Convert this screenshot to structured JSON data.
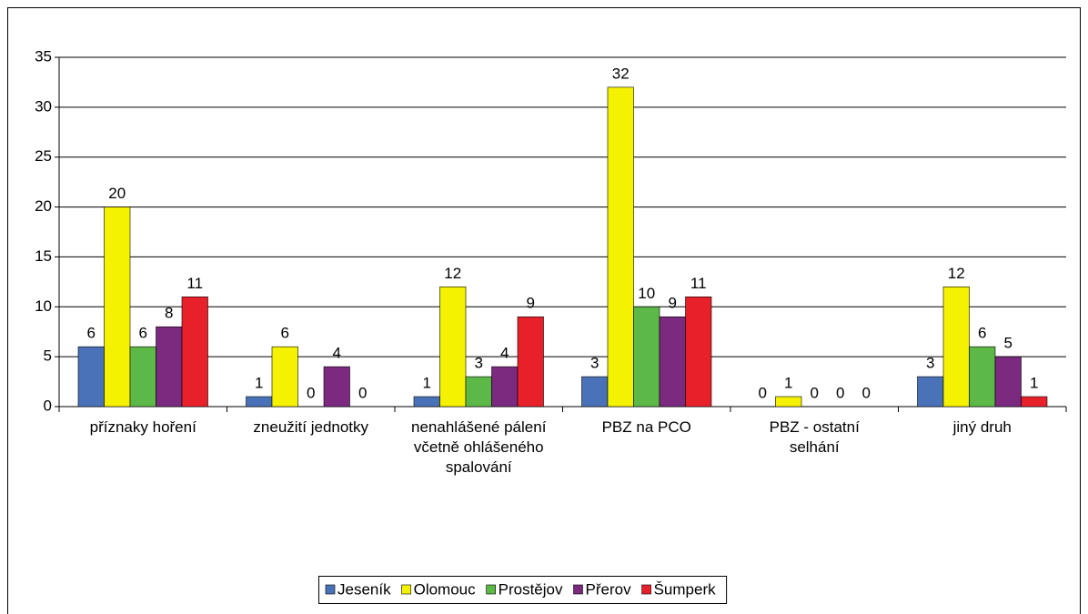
{
  "chart_data": {
    "type": "bar",
    "categories": [
      "příznaky hoření",
      "zneužití jednotky",
      "nenahlášené pálení včetně ohlášeného spalování",
      "PBZ na PCO",
      "PBZ - ostatní selhání",
      "jiný druh"
    ],
    "series": [
      {
        "name": "Jeseník",
        "color": "#4a72b8",
        "values": [
          6,
          1,
          1,
          3,
          0,
          3
        ]
      },
      {
        "name": "Olomouc",
        "color": "#f5f200",
        "values": [
          20,
          6,
          12,
          32,
          1,
          12
        ]
      },
      {
        "name": "Prostějov",
        "color": "#5cb847",
        "values": [
          6,
          0,
          3,
          10,
          0,
          6
        ]
      },
      {
        "name": "Přerov",
        "color": "#7b2a80",
        "values": [
          8,
          4,
          4,
          9,
          0,
          5
        ]
      },
      {
        "name": "Šumperk",
        "color": "#e8202a",
        "values": [
          11,
          0,
          9,
          11,
          0,
          1
        ]
      }
    ],
    "ylim": [
      0,
      35
    ],
    "yticks": [
      0,
      5,
      10,
      15,
      20,
      25,
      30,
      35
    ],
    "grid": true,
    "legend": "bottom"
  }
}
